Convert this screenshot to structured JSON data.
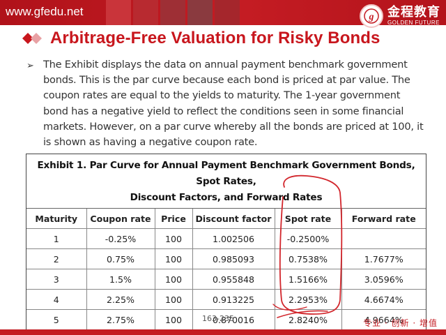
{
  "header": {
    "site_url": "www.gfedu.net",
    "logo_cn": "金程教育",
    "logo_en": "GOLDEN FUTURE",
    "brand_color": "#c41c23"
  },
  "slide": {
    "title": "Arbitrage-Free Valuation for Risky Bonds",
    "bullet_icon": "arrow-bullet-icon",
    "paragraph_lines": [
      "The Exhibit displays the data on annual payment benchmark government",
      "bonds. This is the par curve because each bond is priced at par value. The",
      "coupon rates are equal to the yields to maturity. The 1-year government",
      "bond has a negative yield to reflect the conditions seen in some financial",
      "markets. However, on a par curve whereby all the bonds are priced at 100, it",
      "is shown as having a negative coupon rate."
    ]
  },
  "exhibit": {
    "caption_line1": "Exhibit 1. Par Curve for Annual Payment Benchmark Government Bonds, Spot Rates,",
    "caption_line2": "Discount Factors, and Forward Rates",
    "columns": [
      "Maturity",
      "Coupon rate",
      "Price",
      "Discount factor",
      "Spot rate",
      "Forward rate"
    ],
    "rows": [
      [
        "1",
        "-0.25%",
        "100",
        "1.002506",
        "-0.2500%",
        ""
      ],
      [
        "2",
        "0.75%",
        "100",
        "0.985093",
        "0.7538%",
        "1.7677%"
      ],
      [
        "3",
        "1.5%",
        "100",
        "0.955848",
        "1.5166%",
        "3.0596%"
      ],
      [
        "4",
        "2.25%",
        "100",
        "0.913225",
        "2.2953%",
        "4.6674%"
      ],
      [
        "5",
        "2.75%",
        "100",
        "0.870016",
        "2.8240%",
        "4.9664%"
      ]
    ]
  },
  "footer": {
    "page_number": "163-235",
    "slogan": "专业 · 创新 · 增值"
  }
}
